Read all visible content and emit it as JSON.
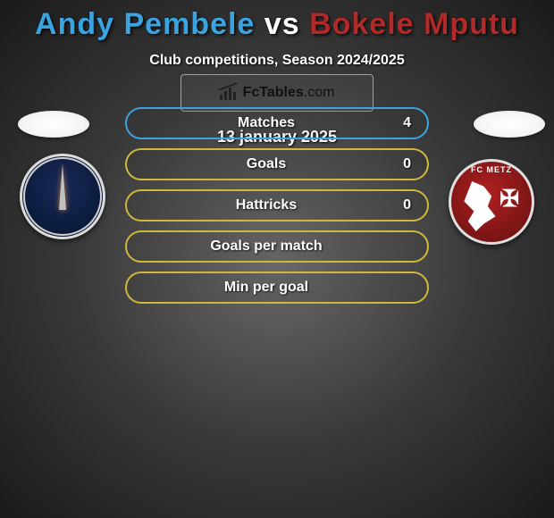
{
  "title_parts": {
    "p1": "Andy Pembele",
    "vs": " vs ",
    "p2": "Bokele Mputu"
  },
  "title_colors": {
    "p1": "#3aa3e0",
    "vs": "#ffffff",
    "p2": "#b02a2a"
  },
  "subtitle": "Club competitions, Season 2024/2025",
  "date": "13 january 2025",
  "pills": [
    {
      "label": "Matches",
      "value": "4",
      "color": "#3aa3e0"
    },
    {
      "label": "Goals",
      "value": "0",
      "color": "#d0b83a"
    },
    {
      "label": "Hattricks",
      "value": "0",
      "color": "#d0b83a"
    },
    {
      "label": "Goals per match",
      "value": "",
      "color": "#d0b83a"
    },
    {
      "label": "Min per goal",
      "value": "",
      "color": "#d0b83a"
    }
  ],
  "watermark": {
    "brand": "FcTables",
    "suffix": ".com"
  },
  "crest_left_name": "paris-fc-crest",
  "crest_right_name": "fc-metz-crest"
}
